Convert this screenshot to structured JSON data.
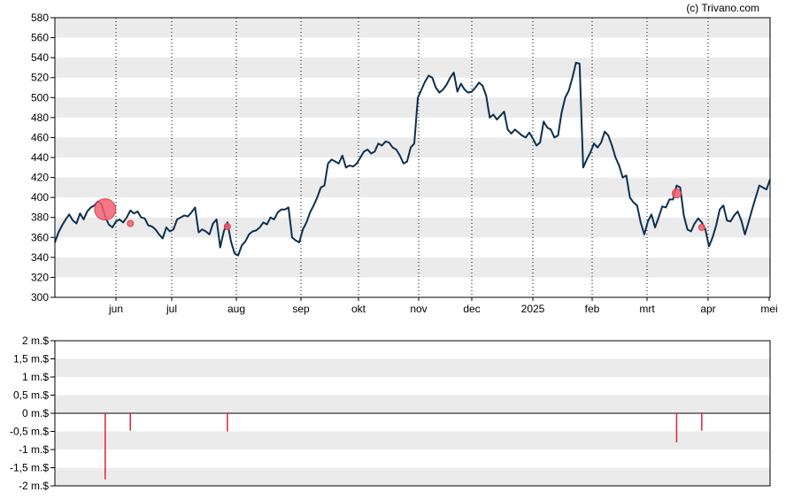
{
  "credit": "(c) Trivano.com",
  "colors": {
    "line": "#0b3050",
    "marker": "#f06070",
    "marker_edge": "#e04050",
    "bar": "#e0203a",
    "band": "#ebebeb",
    "grid": "#000000"
  },
  "chart_data": [
    {
      "type": "line",
      "title": "",
      "ylim": [
        300,
        580
      ],
      "y_ticks": [
        "300",
        "320",
        "340",
        "360",
        "380",
        "400",
        "420",
        "440",
        "460",
        "480",
        "500",
        "520",
        "540",
        "560",
        "580"
      ],
      "x_ticks": [
        "jun",
        "jul",
        "aug",
        "sep",
        "okt",
        "nov",
        "dec",
        "2025",
        "feb",
        "mrt",
        "apr",
        "mei"
      ],
      "grid": "vertical dotted lines at month boundaries, alternating horizontal bands",
      "series": [
        {
          "values": [
            355,
            365,
            372,
            378,
            383,
            377,
            374,
            384,
            378,
            386,
            390,
            392,
            396,
            393,
            381,
            373,
            370,
            376,
            378,
            375,
            380,
            387,
            384,
            386,
            380,
            379,
            372,
            371,
            368,
            363,
            359,
            370,
            366,
            368,
            378,
            380,
            382,
            381,
            385,
            390,
            365,
            368,
            366,
            363,
            374,
            378,
            350,
            366,
            375,
            356,
            344,
            342,
            352,
            356,
            363,
            366,
            367,
            370,
            375,
            373,
            380,
            378,
            385,
            388,
            388,
            390,
            360,
            357,
            355,
            368,
            375,
            385,
            392,
            400,
            410,
            412,
            434,
            438,
            436,
            434,
            442,
            430,
            432,
            431,
            434,
            440,
            446,
            448,
            444,
            446,
            454,
            452,
            456,
            455,
            450,
            448,
            442,
            434,
            436,
            450,
            454,
            500,
            508,
            516,
            522,
            520,
            510,
            505,
            508,
            513,
            520,
            525,
            506,
            514,
            508,
            505,
            506,
            510,
            515,
            512,
            502,
            480,
            483,
            478,
            482,
            486,
            468,
            464,
            468,
            465,
            462,
            460,
            465,
            459,
            452,
            455,
            476,
            470,
            468,
            460,
            462,
            485,
            500,
            507,
            520,
            535,
            534,
            430,
            438,
            445,
            454,
            450,
            455,
            466,
            462,
            452,
            440,
            432,
            420,
            422,
            400,
            395,
            392,
            375,
            363,
            376,
            383,
            370,
            380,
            391,
            390,
            398,
            398,
            412,
            410,
            382,
            368,
            366,
            374,
            379,
            375,
            368,
            351,
            360,
            372,
            388,
            392,
            377,
            376,
            382,
            386,
            377,
            363,
            375,
            388,
            400,
            412,
            410,
            408,
            418
          ]
        }
      ],
      "events": [
        {
          "date_index": 14,
          "value": 388,
          "size": "large"
        },
        {
          "date_index": 21,
          "value": 374,
          "size": "small"
        },
        {
          "date_index": 48,
          "value": 371,
          "size": "small"
        },
        {
          "date_index": 173,
          "value": 404,
          "size": "medium"
        },
        {
          "date_index": 180,
          "value": 370,
          "size": "small"
        }
      ]
    },
    {
      "type": "bar",
      "title": "",
      "ylim": [
        -2,
        2
      ],
      "y_ticks": [
        "2 m.$",
        "1,5 m.$",
        "1 m.$",
        "0,5 m.$",
        "0 m.$",
        "-0,5 m.$",
        "-1 m.$",
        "-1,5 m.$",
        "-2 m.$"
      ],
      "values_unit": "m.$",
      "bars": [
        {
          "date_index": 14,
          "value": -1.82
        },
        {
          "date_index": 21,
          "value": -0.48
        },
        {
          "date_index": 48,
          "value": -0.5
        },
        {
          "date_index": 173,
          "value": -0.8
        },
        {
          "date_index": 180,
          "value": -0.48
        }
      ]
    }
  ]
}
